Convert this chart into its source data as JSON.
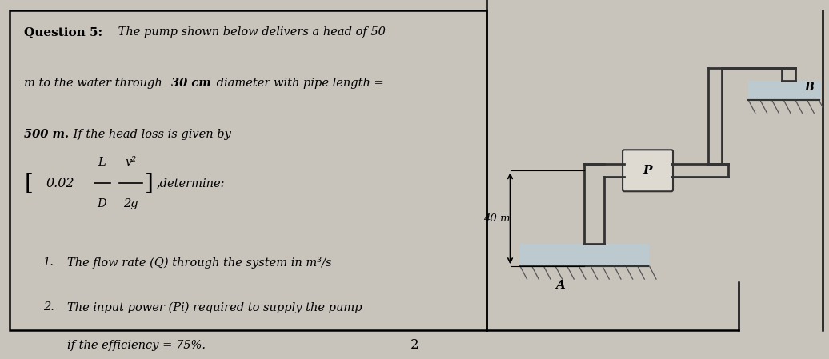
{
  "bg_color": "#c8c4bc",
  "box_bg": "#dedad2",
  "text_color": "#111111",
  "pipe_color": "#333333",
  "page_number": "2",
  "label_40m": "40 m",
  "label_A": "A",
  "label_B": "B",
  "label_P": "P",
  "fig_width": 10.36,
  "fig_height": 4.49,
  "dpi": 100
}
